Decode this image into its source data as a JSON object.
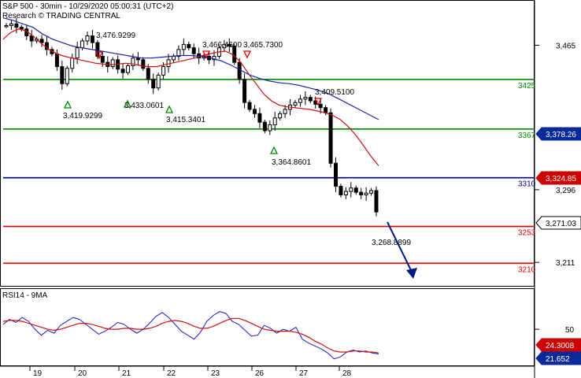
{
  "header": {
    "title": "S&P 500 - 30min - 10/29/2020 05:00:31 (UTC+2)",
    "subtitle": "Research © TRADING CENTRAL"
  },
  "rsi_label": "RSI14 - 9MA",
  "colors": {
    "price": "#000000",
    "ma_fast": "#cc1111",
    "ma_slow": "#2222aa",
    "support_green": "#008800",
    "pivot_blue": "#000099",
    "resist_red": "#dd0000",
    "arrow": "#001a80",
    "rsi": "#1a1acc",
    "rsi_ma": "#cc1111",
    "tag_blue": "#0a2a99",
    "tag_red": "#cc0000",
    "tag_black": "#000000"
  },
  "chart_data": [
    {
      "type": "candlestick",
      "title": "S&P 500 - 30min - 10/29/2020 05:00:31 (UTC+2)",
      "x_ticks": [
        "19",
        "20",
        "21",
        "22",
        "23",
        "26",
        "27",
        "28"
      ],
      "y_ticks": [
        3465,
        3296,
        3211
      ],
      "ylim": [
        3190,
        3505
      ],
      "series": [
        {
          "name": "price",
          "values": [
            3488,
            3490,
            3486,
            3484,
            3476,
            3470,
            3472,
            3468,
            3460,
            3455,
            3440,
            3420,
            3438,
            3450,
            3462,
            3470,
            3476,
            3468,
            3452,
            3445,
            3440,
            3448,
            3437,
            3433,
            3441,
            3450,
            3448,
            3438,
            3425,
            3415,
            3430,
            3440,
            3448,
            3452,
            3460,
            3466,
            3462,
            3455,
            3450,
            3452,
            3448,
            3452,
            3462,
            3466,
            3464,
            3445,
            3425,
            3398,
            3390,
            3385,
            3375,
            3365,
            3372,
            3380,
            3385,
            3390,
            3395,
            3398,
            3402,
            3404,
            3400,
            3396,
            3392,
            3386,
            3327,
            3300,
            3290,
            3294,
            3298,
            3293,
            3290,
            3292,
            3295,
            3270
          ]
        },
        {
          "name": "ma_fast",
          "values": [
            3472,
            3480,
            3484,
            3482,
            3475,
            3467,
            3460,
            3455,
            3452,
            3450,
            3448,
            3446,
            3444,
            3443,
            3442,
            3443,
            3444,
            3443,
            3441,
            3440,
            3440,
            3442,
            3444,
            3446,
            3448,
            3450,
            3453,
            3455,
            3457,
            3458,
            3454,
            3445,
            3432,
            3420,
            3408,
            3400,
            3395,
            3393,
            3392,
            3391,
            3390,
            3388,
            3386,
            3383,
            3378,
            3370,
            3360,
            3348,
            3335,
            3324
          ]
        },
        {
          "name": "ma_slow",
          "values": [
            3497,
            3494,
            3490,
            3486,
            3478,
            3472,
            3468,
            3464,
            3462,
            3460,
            3458,
            3456,
            3454,
            3452,
            3450,
            3450,
            3451,
            3452,
            3453,
            3453,
            3452,
            3450,
            3447,
            3442,
            3436,
            3430,
            3426,
            3423,
            3421,
            3420,
            3418,
            3415,
            3412,
            3408,
            3402,
            3396,
            3390,
            3384,
            3378
          ]
        }
      ],
      "horizontal_levels": [
        {
          "value": 3425,
          "label": "3425",
          "color": "green"
        },
        {
          "value": 3367,
          "label": "3367",
          "color": "green"
        },
        {
          "value": 3310,
          "label": "3310",
          "color": "blue"
        },
        {
          "value": 3253,
          "label": "3253",
          "color": "red"
        },
        {
          "value": 3210,
          "label": "3210",
          "color": "red"
        }
      ],
      "price_tags": [
        {
          "value": 3378.26,
          "label": "3,378.26",
          "color": "blue"
        },
        {
          "value": 3324.85,
          "label": "3,324.85",
          "color": "red"
        },
        {
          "value": 3271.03,
          "label": "3,271.03",
          "color": "black"
        }
      ],
      "annotations": [
        {
          "text": "3,476.9299",
          "kind": "high"
        },
        {
          "text": "3,466.4600",
          "kind": "high"
        },
        {
          "text": "3,465.7300",
          "kind": "high"
        },
        {
          "text": "3,409.5100",
          "kind": "high"
        },
        {
          "text": "3,419.9299",
          "kind": "low"
        },
        {
          "text": "3,433.0601",
          "kind": "low"
        },
        {
          "text": "3,415.3401",
          "kind": "low"
        },
        {
          "text": "3,364.8601",
          "kind": "low"
        },
        {
          "text": "3,268.8899",
          "kind": "low"
        }
      ]
    },
    {
      "type": "line",
      "title": "RSI14 - 9MA",
      "y_ticks": [
        50
      ],
      "ylim": [
        15,
        90
      ],
      "series": [
        {
          "name": "RSI",
          "values": [
            55,
            60,
            57,
            62,
            58,
            50,
            44,
            49,
            46,
            54,
            58,
            62,
            60,
            55,
            50,
            45,
            48,
            52,
            57,
            55,
            50,
            46,
            50,
            56,
            63,
            67,
            62,
            55,
            48,
            44,
            40,
            47,
            58,
            64,
            68,
            66,
            58,
            55,
            49,
            43,
            44,
            54,
            51,
            46,
            50,
            48,
            52,
            40,
            36,
            33,
            30,
            26,
            20,
            22,
            27,
            29,
            27,
            28,
            26,
            25
          ]
        },
        {
          "name": "MA",
          "values": [
            58,
            59,
            59,
            58,
            56,
            54,
            52,
            50,
            49,
            50,
            52,
            54,
            56,
            56,
            55,
            53,
            51,
            50,
            50,
            51,
            51,
            50,
            50,
            51,
            53,
            56,
            58,
            59,
            58,
            56,
            53,
            51,
            51,
            53,
            56,
            59,
            61,
            61,
            59,
            56,
            53,
            50,
            49,
            48,
            48,
            48,
            47,
            45,
            42,
            38,
            35,
            31,
            28,
            27,
            27,
            28,
            28,
            27,
            27,
            26
          ]
        }
      ],
      "price_tags": [
        {
          "value": 24.3008,
          "label": "24.3008",
          "color": "red"
        },
        {
          "value": 21.652,
          "label": "21.652",
          "color": "blue"
        }
      ]
    }
  ]
}
